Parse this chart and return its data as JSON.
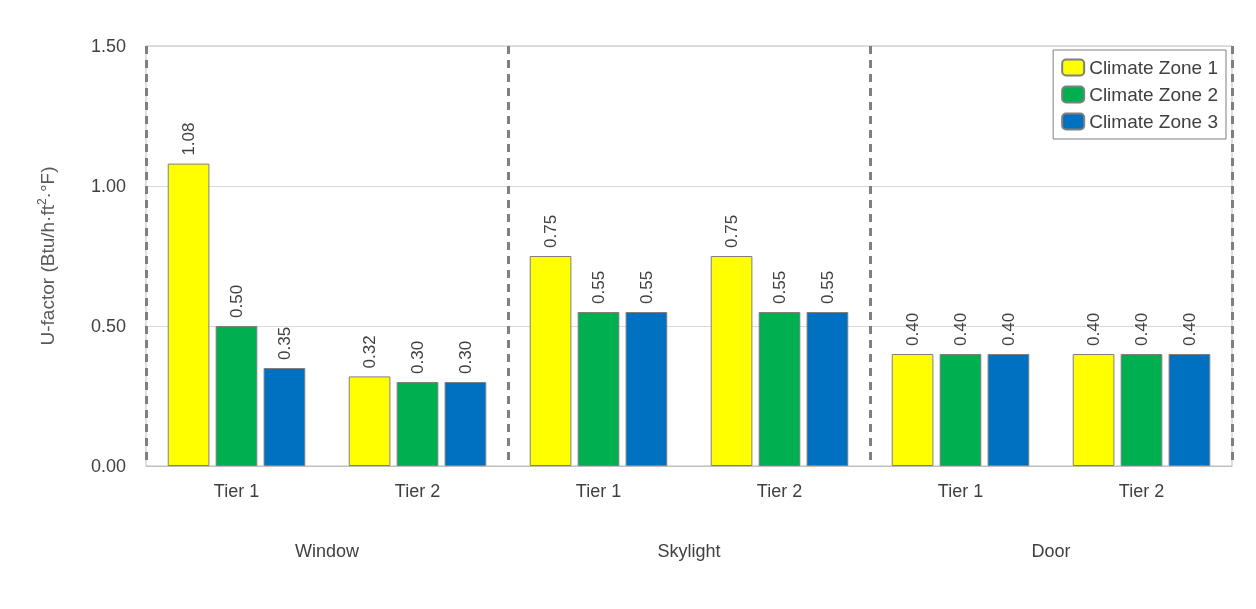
{
  "chart_data": {
    "type": "bar",
    "ylabel": "U-factor (Btu/h·ft$^{2}$·°F)",
    "categories": [
      "Tier 1",
      "Tier 2",
      "Tier 1",
      "Tier 2",
      "Tier 1",
      "Tier 2"
    ],
    "annotations": [
      "Window",
      "Skylight",
      "Door"
    ],
    "series": [
      {
        "name": "Climate Zone 1",
        "color": "#ffff00",
        "values": [
          1.08,
          0.32,
          0.75,
          0.75,
          0.4,
          0.4
        ],
        "value_labels": [
          "1.08",
          "0.32",
          "0.75",
          "0.75",
          "0.40",
          "0.40"
        ]
      },
      {
        "name": "Climate Zone 2",
        "color": "#00b050",
        "values": [
          0.5,
          0.3,
          0.55,
          0.55,
          0.4,
          0.4
        ],
        "value_labels": [
          "0.50",
          "0.30",
          "0.55",
          "0.55",
          "0.40",
          "0.40"
        ]
      },
      {
        "name": "Climate Zone 3",
        "color": "#0070c0",
        "values": [
          0.35,
          0.3,
          0.55,
          0.55,
          0.4,
          0.4
        ],
        "value_labels": [
          "0.35",
          "0.30",
          "0.55",
          "0.55",
          "0.40",
          "0.40"
        ]
      }
    ],
    "ylim": [
      0,
      1.5
    ],
    "yticks": [
      {
        "value": 0,
        "label": "0.00"
      },
      {
        "value": 0.5,
        "label": "0.50"
      },
      {
        "value": 1,
        "label": "1.00"
      },
      {
        "value": 1.5,
        "label": "1.50"
      }
    ],
    "grid": "y",
    "legend": "top right"
  }
}
